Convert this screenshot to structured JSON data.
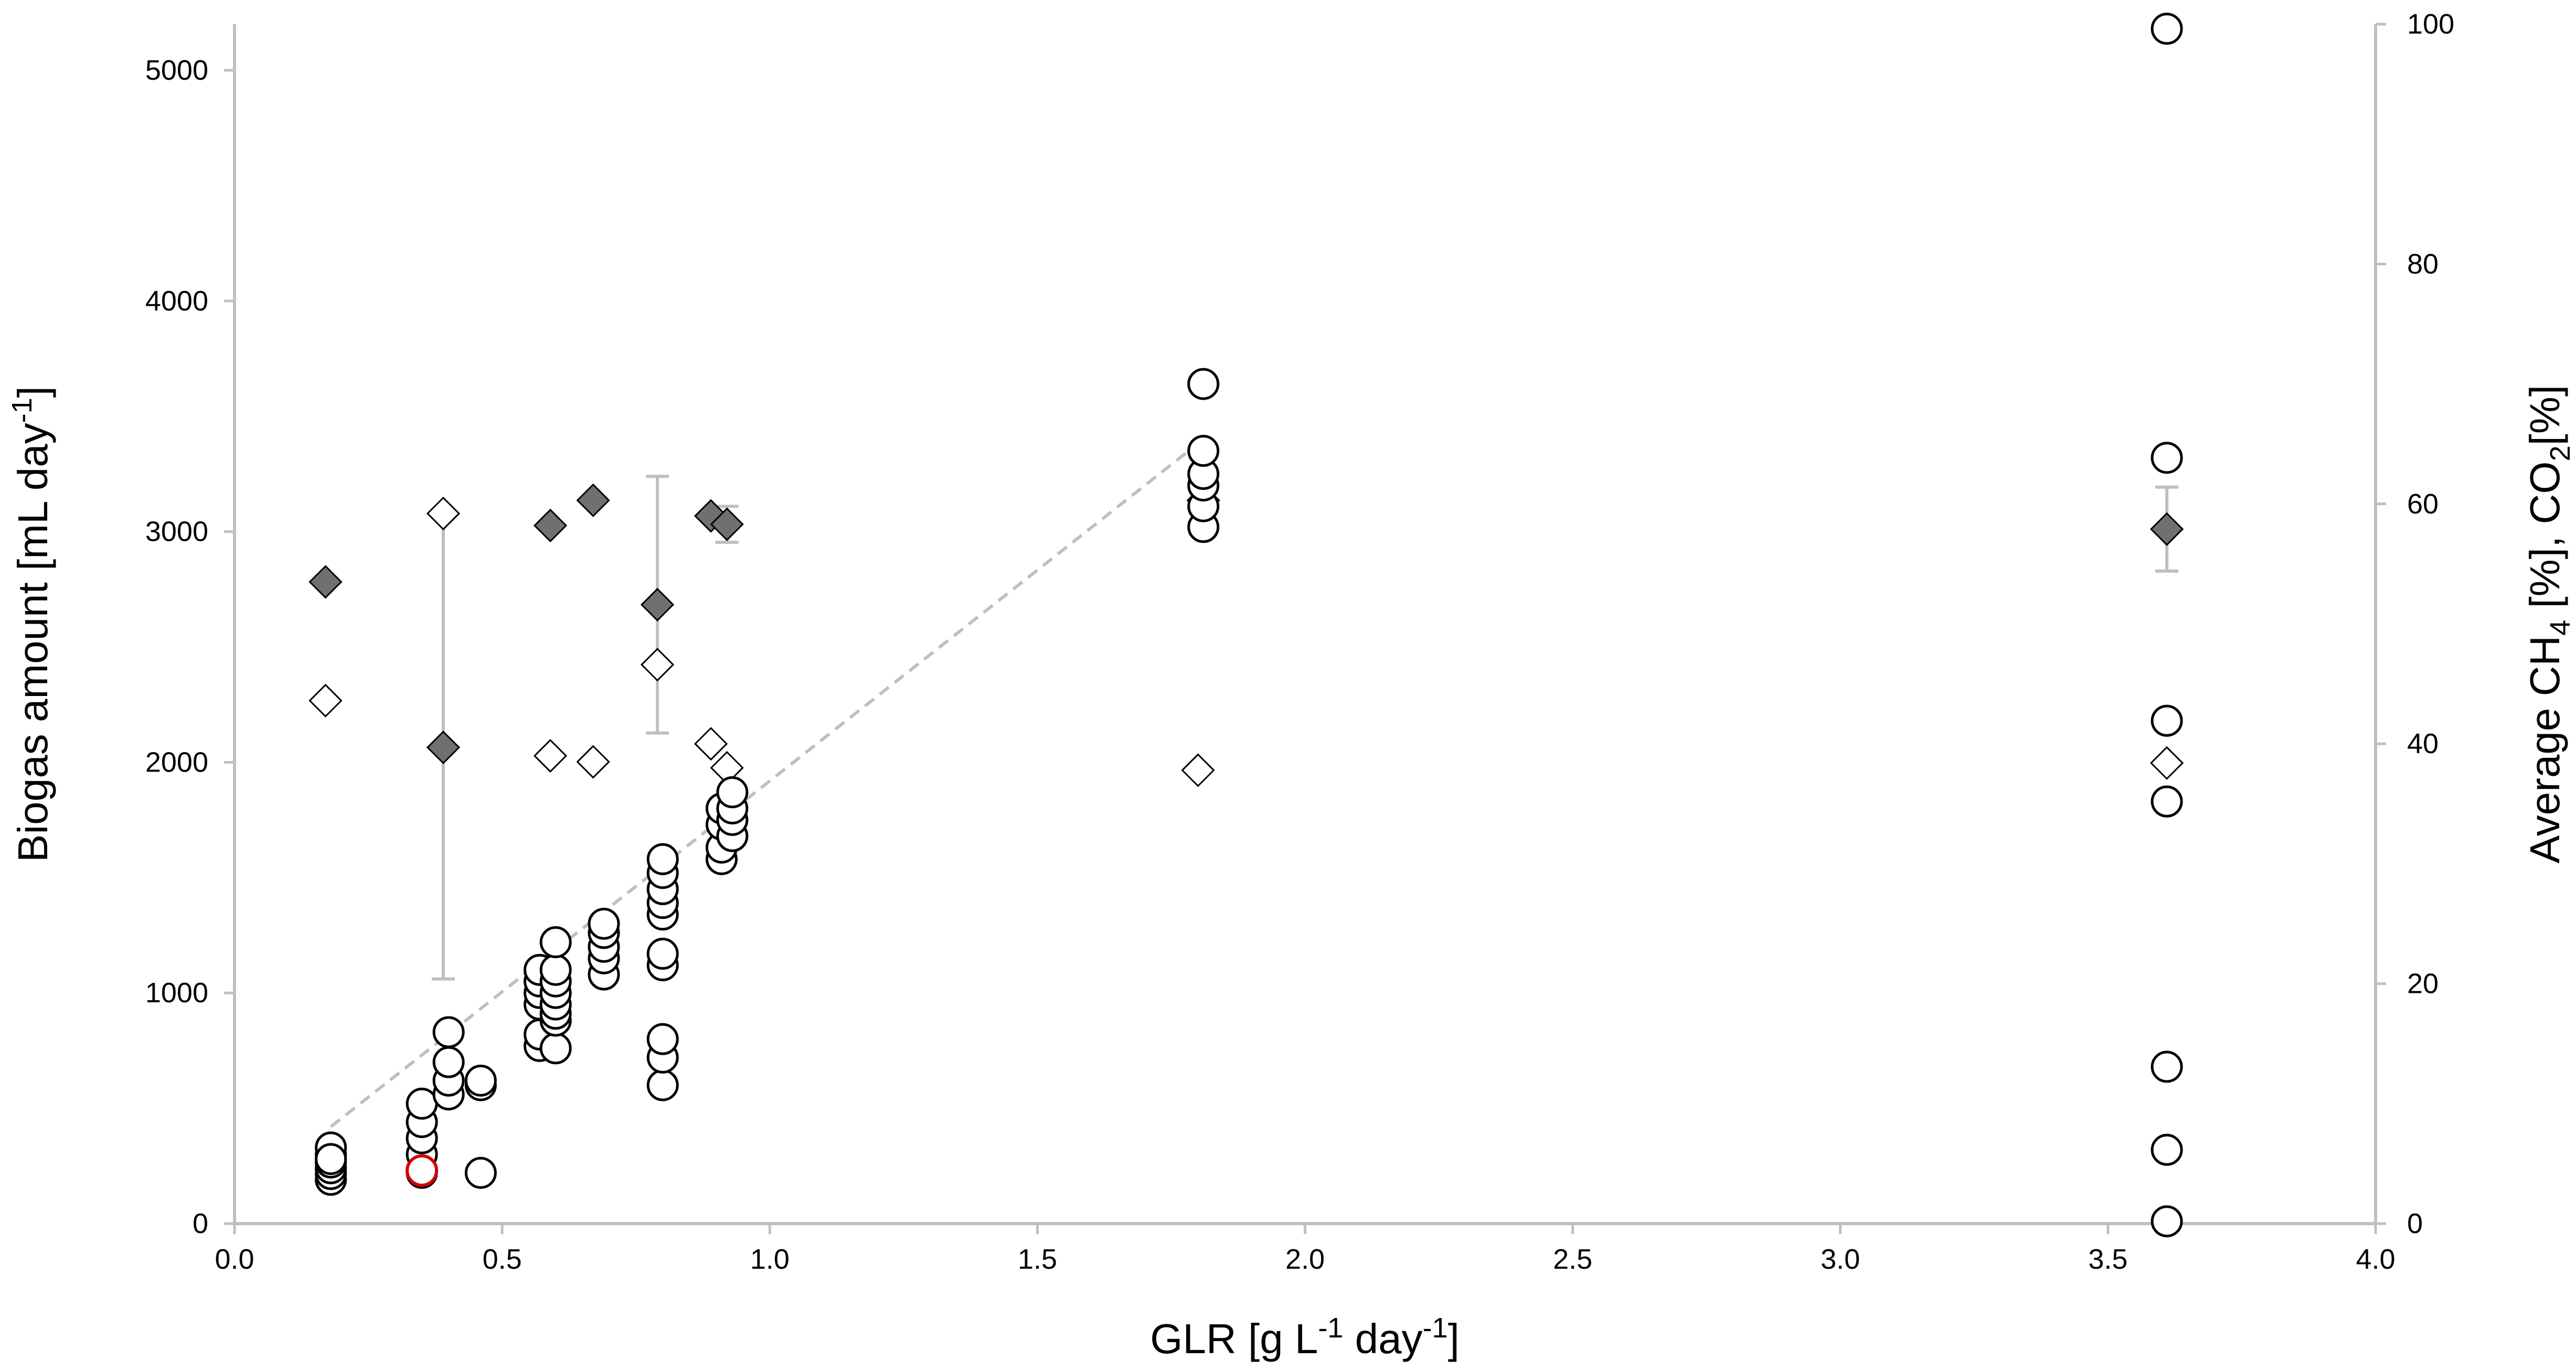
{
  "chart_data": {
    "type": "scatter",
    "xlabel": {
      "main": "GLR [g L",
      "sup1": "-1",
      "mid": " day",
      "sup2": "-1",
      "end": "]"
    },
    "ylabel_left": {
      "main": "Biogas amount [mL day",
      "sup": "-1",
      "end": "]"
    },
    "ylabel_right": {
      "p1": "Average CH",
      "sub1": "4",
      "p2": " [%], CO",
      "sub2": "2",
      "p3": "[%]"
    },
    "xlim": [
      0.0,
      4.0
    ],
    "ylim_left": [
      0,
      5200
    ],
    "ylim_right": [
      0,
      100
    ],
    "x_ticks": [
      "0.0",
      "0.5",
      "1.0",
      "1.5",
      "2.0",
      "2.5",
      "3.0",
      "3.5",
      "4.0"
    ],
    "y_left_ticks": [
      "0",
      "1000",
      "2000",
      "3000",
      "4000",
      "5000"
    ],
    "y_right_ticks": [
      "0",
      "20",
      "40",
      "60",
      "80",
      "100"
    ],
    "colors": {
      "axis": "#bfbfbf",
      "ch4_fill": "#707070",
      "co2_fill": "#ffffff",
      "highlight": "#d40000",
      "trend": "#bfbfbf"
    },
    "series": [
      {
        "name": "Biogas amount",
        "marker": "circle",
        "axis": "left",
        "points": [
          [
            0.18,
            190
          ],
          [
            0.18,
            215
          ],
          [
            0.18,
            240
          ],
          [
            0.18,
            265
          ],
          [
            0.18,
            300
          ],
          [
            0.18,
            330
          ],
          [
            0.18,
            280
          ],
          [
            0.35,
            220
          ],
          [
            0.35,
            300
          ],
          [
            0.35,
            370
          ],
          [
            0.35,
            440
          ],
          [
            0.35,
            520
          ],
          [
            0.4,
            560
          ],
          [
            0.4,
            620
          ],
          [
            0.4,
            700
          ],
          [
            0.4,
            830
          ],
          [
            0.46,
            220
          ],
          [
            0.46,
            600
          ],
          [
            0.46,
            620
          ],
          [
            0.57,
            770
          ],
          [
            0.57,
            820
          ],
          [
            0.57,
            950
          ],
          [
            0.57,
            1000
          ],
          [
            0.57,
            1050
          ],
          [
            0.57,
            1100
          ],
          [
            0.6,
            760
          ],
          [
            0.6,
            880
          ],
          [
            0.6,
            910
          ],
          [
            0.6,
            950
          ],
          [
            0.6,
            1000
          ],
          [
            0.6,
            1050
          ],
          [
            0.6,
            1100
          ],
          [
            0.6,
            1220
          ],
          [
            0.69,
            1080
          ],
          [
            0.69,
            1150
          ],
          [
            0.69,
            1200
          ],
          [
            0.69,
            1260
          ],
          [
            0.69,
            1300
          ],
          [
            0.8,
            600
          ],
          [
            0.8,
            720
          ],
          [
            0.8,
            800
          ],
          [
            0.8,
            1120
          ],
          [
            0.8,
            1170
          ],
          [
            0.8,
            1340
          ],
          [
            0.8,
            1390
          ],
          [
            0.8,
            1450
          ],
          [
            0.8,
            1520
          ],
          [
            0.8,
            1580
          ],
          [
            0.91,
            1580
          ],
          [
            0.91,
            1630
          ],
          [
            0.91,
            1730
          ],
          [
            0.91,
            1800
          ],
          [
            0.93,
            1680
          ],
          [
            0.93,
            1750
          ],
          [
            0.93,
            1800
          ],
          [
            0.93,
            1870
          ],
          [
            1.81,
            3020
          ],
          [
            1.81,
            3110
          ],
          [
            1.81,
            3200
          ],
          [
            1.81,
            3250
          ],
          [
            1.81,
            3350
          ],
          [
            1.81,
            3640
          ],
          [
            3.61,
            10
          ],
          [
            3.61,
            320
          ],
          [
            3.61,
            680
          ],
          [
            3.61,
            1830
          ],
          [
            3.61,
            2180
          ],
          [
            3.61,
            3320
          ],
          [
            3.61,
            5180
          ]
        ]
      },
      {
        "name": "Biogas amount (highlighted)",
        "marker": "circle-red",
        "axis": "left",
        "points": [
          [
            0.35,
            230
          ]
        ]
      },
      {
        "name": "Average CH4 [%]",
        "marker": "diamond-filled",
        "axis": "right",
        "points": [
          [
            0.17,
            53.5
          ],
          [
            0.39,
            39.7
          ],
          [
            0.59,
            58.2
          ],
          [
            0.67,
            60.3
          ],
          [
            0.79,
            51.6
          ],
          [
            0.89,
            59.0
          ],
          [
            0.92,
            58.3
          ],
          [
            1.81,
            60.3
          ],
          [
            3.61,
            57.9
          ]
        ],
        "errors": [
          [
            0.39,
            19.3
          ],
          [
            0.79,
            10.7
          ],
          [
            0.92,
            1.5
          ],
          [
            3.61,
            3.5
          ]
        ]
      },
      {
        "name": "CO2 [%]",
        "marker": "diamond-open",
        "axis": "right",
        "points": [
          [
            0.17,
            43.6
          ],
          [
            0.39,
            59.2
          ],
          [
            0.59,
            39.0
          ],
          [
            0.67,
            38.5
          ],
          [
            0.79,
            46.6
          ],
          [
            0.89,
            40.0
          ],
          [
            0.92,
            38.0
          ],
          [
            1.8,
            37.8
          ],
          [
            3.61,
            38.4
          ]
        ]
      },
      {
        "name": "Linear trend",
        "marker": "dashed-line",
        "axis": "left",
        "points": [
          [
            0.18,
            420
          ],
          [
            1.81,
            3400
          ]
        ]
      }
    ]
  }
}
